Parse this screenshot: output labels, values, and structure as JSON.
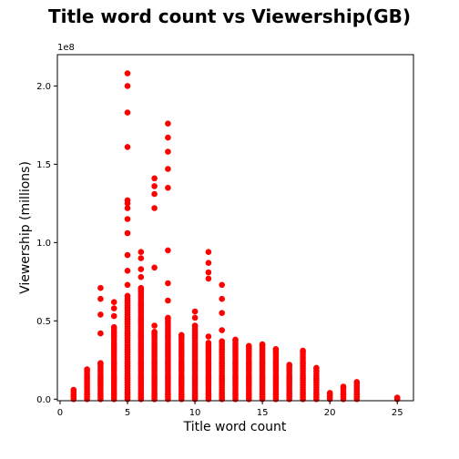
{
  "chart_data": {
    "type": "scatter",
    "title": "Title word count vs Viewership(GB)",
    "xlabel": "Title word count",
    "ylabel": "Viewership (millions)",
    "y_offset_label": "1e8",
    "xlim": [
      -0.2,
      26.2
    ],
    "ylim": [
      -1000000,
      220000000
    ],
    "x_ticks": [
      0,
      5,
      10,
      15,
      20,
      25
    ],
    "x_tick_labels": [
      "0",
      "5",
      "10",
      "15",
      "20",
      "25"
    ],
    "y_ticks": [
      0,
      50000000,
      100000000,
      150000000,
      200000000
    ],
    "y_tick_labels": [
      "0.0",
      "0.5",
      "1.0",
      "1.5",
      "2.0"
    ],
    "grid": false,
    "marker_color": "#ff0000",
    "columns": [
      {
        "x": 1,
        "max": 6000000,
        "extra": []
      },
      {
        "x": 2,
        "max": 19000000,
        "extra": []
      },
      {
        "x": 3,
        "max": 23000000,
        "extra": [
          42000000,
          54000000,
          64000000,
          71000000
        ]
      },
      {
        "x": 4,
        "max": 46000000,
        "extra": [
          53000000,
          58000000,
          62000000
        ]
      },
      {
        "x": 5,
        "max": 66000000,
        "extra": [
          73000000,
          82000000,
          92000000,
          106000000,
          115000000,
          122000000,
          125000000,
          127000000,
          161000000,
          183000000,
          200000000,
          208000000
        ]
      },
      {
        "x": 6,
        "max": 71000000,
        "extra": [
          78000000,
          83000000,
          90000000,
          94000000
        ]
      },
      {
        "x": 7,
        "max": 43000000,
        "extra": [
          47000000,
          84000000,
          122000000,
          131000000,
          136000000,
          141000000
        ]
      },
      {
        "x": 8,
        "max": 52000000,
        "extra": [
          63000000,
          74000000,
          95000000,
          135000000,
          147000000,
          158000000,
          167000000,
          176000000
        ]
      },
      {
        "x": 9,
        "max": 41000000,
        "extra": []
      },
      {
        "x": 10,
        "max": 47000000,
        "extra": [
          52000000,
          56000000
        ]
      },
      {
        "x": 11,
        "max": 36000000,
        "extra": [
          40000000,
          77000000,
          81000000,
          87000000,
          94000000
        ]
      },
      {
        "x": 12,
        "max": 37000000,
        "extra": [
          44000000,
          55000000,
          64000000,
          73000000
        ]
      },
      {
        "x": 13,
        "max": 38000000,
        "extra": []
      },
      {
        "x": 14,
        "max": 34000000,
        "extra": []
      },
      {
        "x": 15,
        "max": 35000000,
        "extra": []
      },
      {
        "x": 16,
        "max": 32000000,
        "extra": []
      },
      {
        "x": 17,
        "max": 22000000,
        "extra": []
      },
      {
        "x": 18,
        "max": 31000000,
        "extra": []
      },
      {
        "x": 19,
        "max": 20000000,
        "extra": []
      },
      {
        "x": 20,
        "max": 4000000,
        "extra": []
      },
      {
        "x": 21,
        "max": 8000000,
        "extra": []
      },
      {
        "x": 22,
        "max": 11000000,
        "extra": []
      },
      {
        "x": 25,
        "max": 1000000,
        "extra": []
      }
    ]
  }
}
